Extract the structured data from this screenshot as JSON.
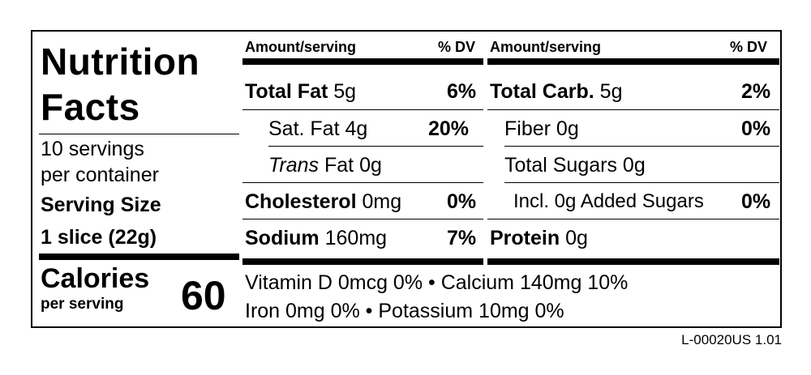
{
  "title_line1": "Nutrition",
  "title_line2": "Facts",
  "servings_line1": "10 servings",
  "servings_line2": "per container",
  "serving_size_label": "Serving Size",
  "serving_size_value": "1 slice (22g)",
  "calories_label": "Calories",
  "calories_sub": "per serving",
  "calories_value": "60",
  "left_col": {
    "header_amount": "Amount/serving",
    "header_dv": "% DV",
    "rows": [
      {
        "name": "Total Fat",
        "amount": " 5g",
        "dv": "6%"
      },
      {
        "name": "Sat. Fat",
        "amount": " 4g",
        "dv": "20%"
      },
      {
        "name_italic": "Trans",
        "name_rest": " Fat 0g"
      },
      {
        "name": "Cholesterol",
        "amount": " 0mg",
        "dv": "0%"
      },
      {
        "name": "Sodium",
        "amount": " 160mg",
        "dv": "7%"
      }
    ]
  },
  "right_col": {
    "header_amount": "Amount/serving",
    "header_dv": "% DV",
    "rows": [
      {
        "name": "Total Carb.",
        "amount": " 5g",
        "dv": "2%"
      },
      {
        "name": "Fiber",
        "amount": " 0g",
        "dv": "0%"
      },
      {
        "name": "Total Sugars",
        "amount": " 0g"
      },
      {
        "name": "Incl. 0g Added Sugars",
        "dv": "0%"
      },
      {
        "name": "Protein",
        "amount": " 0g"
      }
    ]
  },
  "vitamins_line1": "Vitamin D 0mcg 0% • Calcium 140mg 10%",
  "vitamins_line2": "Iron 0mg 0% • Potassium 10mg 0%",
  "label_code": "L-00020US 1.01"
}
